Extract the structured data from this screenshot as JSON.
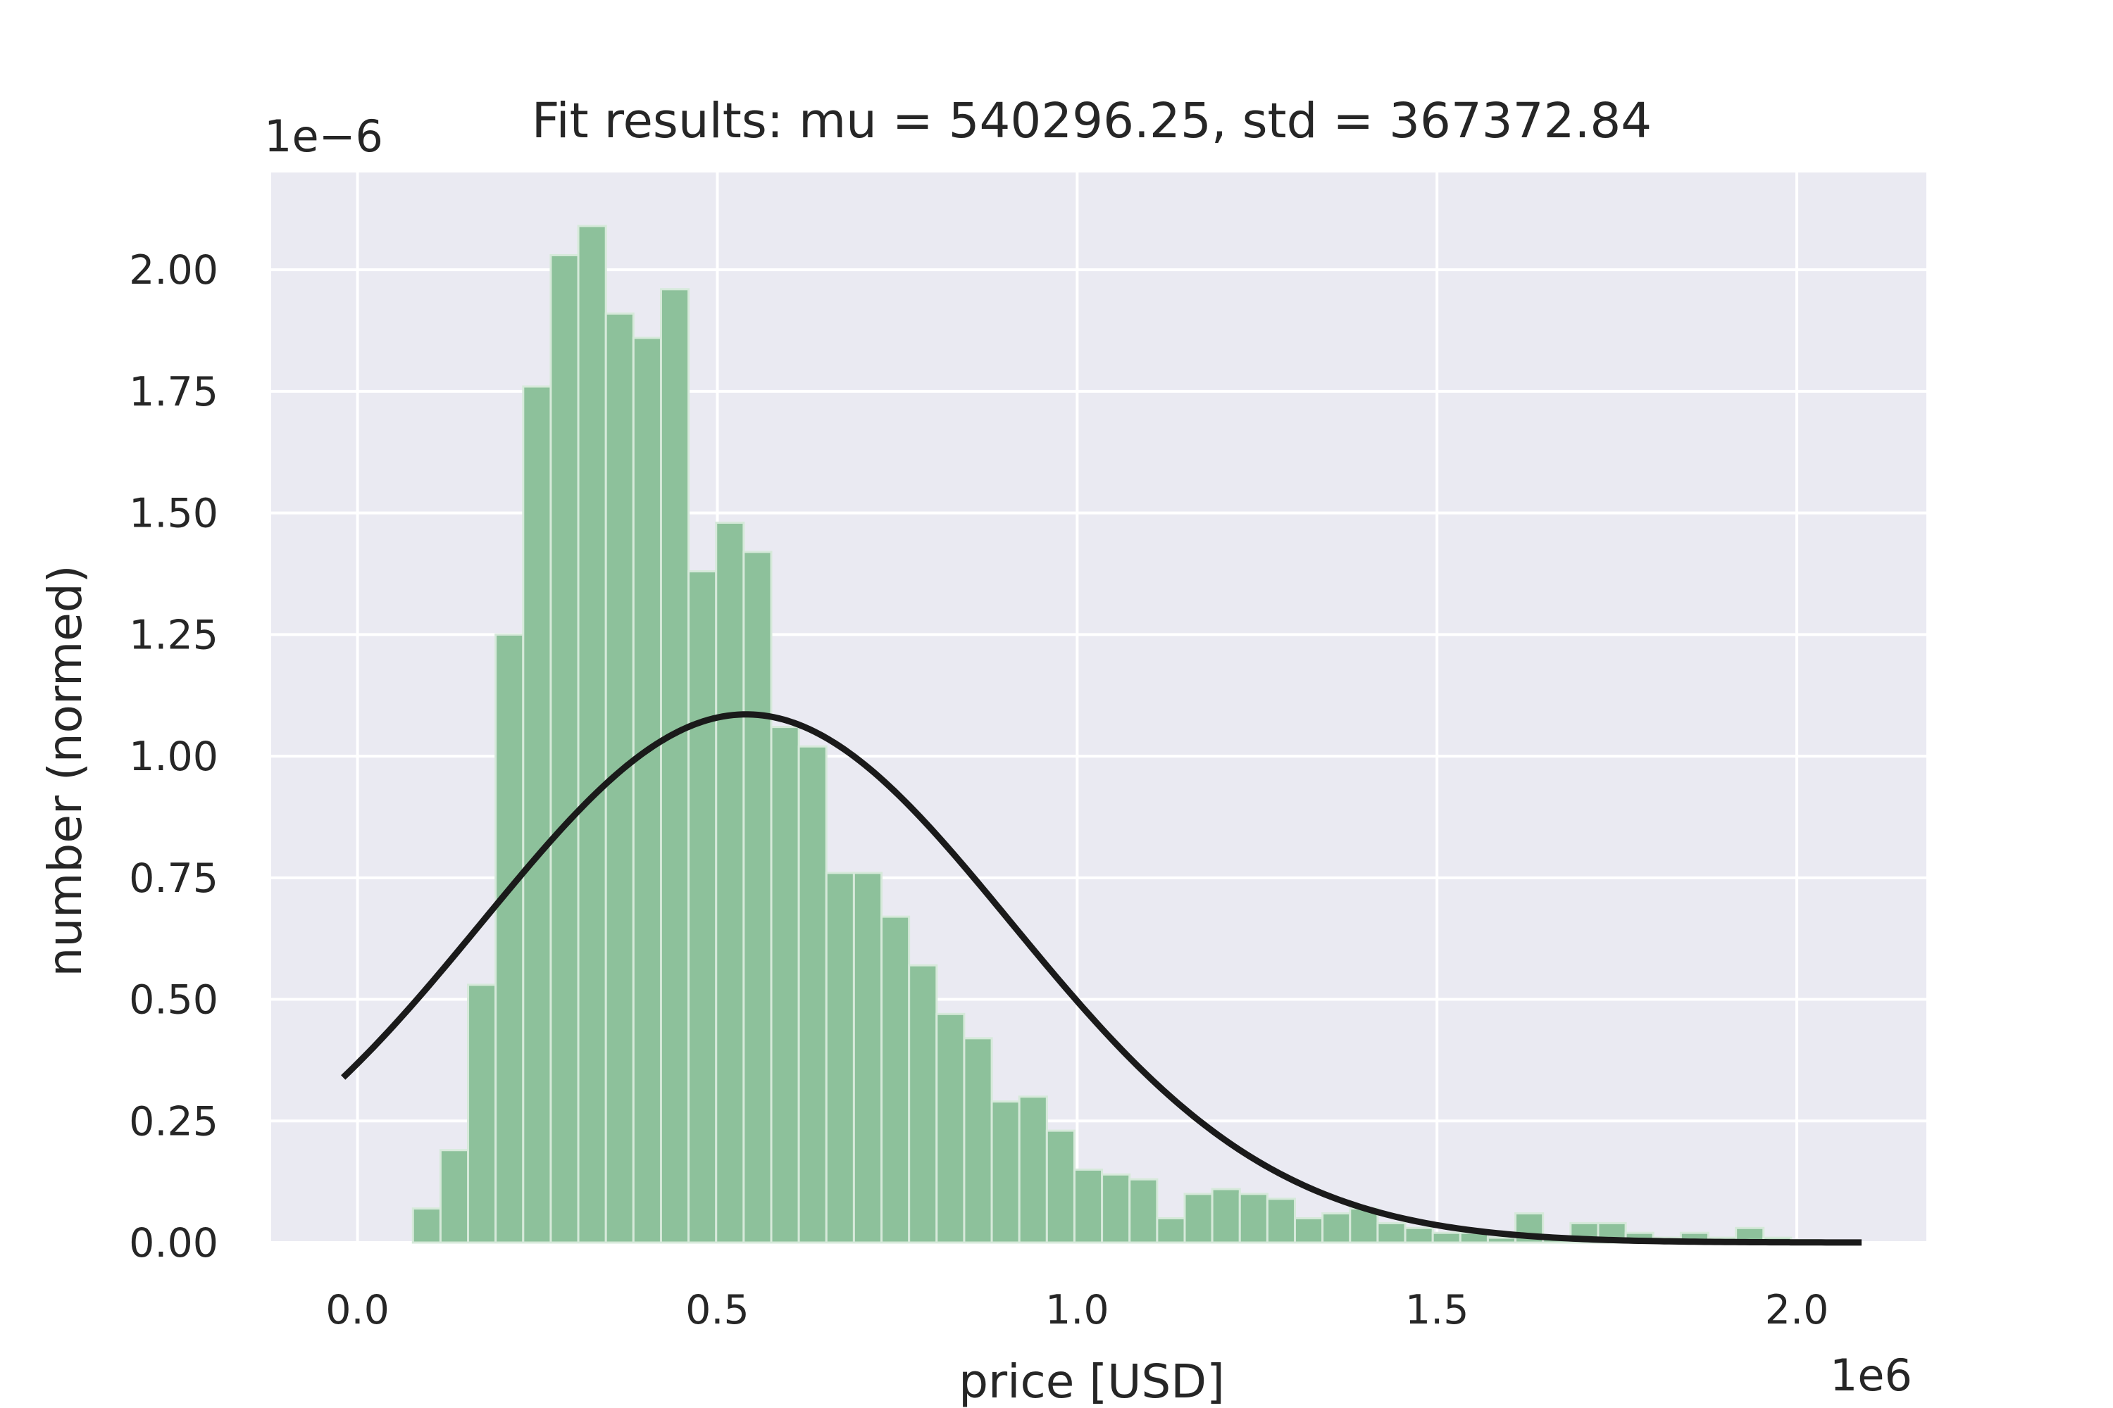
{
  "chart_data": {
    "type": "bar",
    "subtype": "histogram-with-normal-fit",
    "title": "Fit results: mu = 540296.25,  std = 367372.84",
    "xlabel": "price [USD]",
    "ylabel": "number (normed)",
    "x_offset_label": "1e6",
    "y_offset_label": "1e−6",
    "x_scale_factor": 1000000,
    "y_scale_factor": 1e-06,
    "xlim": [
      -0.12,
      2.18
    ],
    "ylim": [
      0,
      2.2
    ],
    "x_ticks": [
      0.0,
      0.5,
      1.0,
      1.5,
      2.0
    ],
    "x_tick_labels": [
      "0.0",
      "0.5",
      "1.0",
      "1.5",
      "2.0"
    ],
    "y_ticks": [
      0.0,
      0.25,
      0.5,
      0.75,
      1.0,
      1.25,
      1.5,
      1.75,
      2.0
    ],
    "y_tick_labels": [
      "0.00",
      "0.25",
      "0.50",
      "0.75",
      "1.00",
      "1.25",
      "1.50",
      "1.75",
      "2.00"
    ],
    "grid": true,
    "histogram": {
      "bin_start": 0.077,
      "bin_width": 0.0383,
      "values": [
        0.07,
        0.19,
        0.53,
        1.25,
        1.76,
        2.03,
        2.09,
        1.91,
        1.86,
        1.96,
        1.38,
        1.48,
        1.42,
        1.06,
        1.02,
        0.76,
        0.76,
        0.67,
        0.57,
        0.47,
        0.42,
        0.29,
        0.3,
        0.23,
        0.15,
        0.14,
        0.13,
        0.05,
        0.1,
        0.11,
        0.1,
        0.09,
        0.05,
        0.06,
        0.07,
        0.04,
        0.03,
        0.02,
        0.02,
        0.01,
        0.06,
        0.01,
        0.04,
        0.04,
        0.02,
        0.01,
        0.02,
        0.01,
        0.03,
        0.01,
        0.005
      ]
    },
    "fit_curve": {
      "mu": 0.54029625,
      "std": 0.36737284,
      "x_range": [
        -0.02,
        2.09
      ]
    },
    "colors": {
      "background": "#eaeaf2",
      "grid": "#ffffff",
      "bar_fill": "#8dc19b",
      "bar_edge": "#d6e9da",
      "curve": "#1a1a1a"
    }
  }
}
